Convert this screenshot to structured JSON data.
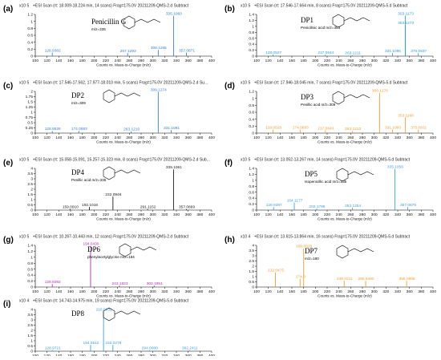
{
  "chart_data": [
    {
      "type": "bar",
      "panel": "(a)",
      "color": "#3a7fd5",
      "header": "+ESI Scan (rt: 18.009-18.224 min, 14 scans) Frag=175.0V 20211209-QMS-2.d  Subtract",
      "scale": "x10 5",
      "yticks": [
        "1.2",
        "1",
        "0.8",
        "0.6",
        "0.4",
        "0.2",
        "0"
      ],
      "ylim": [
        0,
        1.2
      ],
      "xticks": [
        "100",
        "120",
        "140",
        "160",
        "180",
        "200",
        "220",
        "240",
        "260",
        "280",
        "300",
        "320",
        "340",
        "360",
        "380",
        "400"
      ],
      "xlim": [
        100,
        400
      ],
      "xlabel": "Counts vs. Mass-to-Charge (m/z)",
      "compound": "Penicillin G",
      "compound_note": "m/z=335",
      "peaks": [
        {
          "mz": 128.9382,
          "i": 0.1,
          "label": "128.9382"
        },
        {
          "mz": 257.1293,
          "i": 0.09,
          "label": "257.1293"
        },
        {
          "mz": 309.1265,
          "i": 0.18,
          "label": "309.1265"
        },
        {
          "mz": 335.106,
          "i": 1.16,
          "label": "335.1060"
        },
        {
          "mz": 357.0871,
          "i": 0.1,
          "label": "357.0871"
        }
      ]
    },
    {
      "type": "bar",
      "panel": "(b)",
      "color": "#2a9fe0",
      "header": "+ESI Scan (rt: 17.546-17.664 min, 8 scans) Frag=175.0V 20211209-QMS-5.d  Subtract",
      "scale": "x10 5",
      "yticks": [
        "1.4",
        "1.2",
        "1",
        "0.8",
        "0.6",
        "0.4",
        "0.2",
        "0"
      ],
      "ylim": [
        0,
        1.4
      ],
      "xticks": [
        "100",
        "120",
        "140",
        "160",
        "180",
        "200",
        "220",
        "240",
        "260",
        "280",
        "300",
        "320",
        "340",
        "360",
        "380",
        "400"
      ],
      "xlim": [
        100,
        400
      ],
      "xlabel": "Counts vs. Mass-to-Charge (m/z)",
      "compound": "DP1",
      "compound_note": "Penicilloic acid m/z=353",
      "peaks": [
        {
          "mz": 128.0527,
          "i": 0.05,
          "label": "128.0527"
        },
        {
          "mz": 217.0644,
          "i": 0.05,
          "label": "217.0644"
        },
        {
          "mz": 263.1211,
          "i": 0.03,
          "label": "263.1211"
        },
        {
          "mz": 331.1096,
          "i": 0.1,
          "label": "331.1096"
        },
        {
          "mz": 353.1273,
          "i": 1.05,
          "label": "353.1273"
        },
        {
          "mz": 353.1173,
          "i": 1.36,
          "label": "353.1173"
        },
        {
          "mz": 375.0937,
          "i": 0.1,
          "label": "375.0937"
        }
      ]
    },
    {
      "type": "bar",
      "panel": "(c)",
      "color": "#3a7fd5",
      "header": "+ESI Scan (rt: 17.546-17.562, 17.977-18.010 min, 5 scans) Frag=175.0V 20211209-QMS-2.d  Su...",
      "scale": "x10 5",
      "yticks": [
        "2",
        "1.75",
        "1.5",
        "1.25",
        "1",
        "0.75",
        "0.5",
        "0.25",
        "0"
      ],
      "ylim": [
        0,
        2
      ],
      "xticks": [
        "100",
        "120",
        "140",
        "160",
        "180",
        "200",
        "220",
        "240",
        "260",
        "280",
        "300",
        "320",
        "340",
        "360",
        "380",
        "400"
      ],
      "xlim": [
        100,
        400
      ],
      "xlabel": "Counts vs. Mass-to-Charge (m/z)",
      "compound": "DP2",
      "compound_note": "m/z=309",
      "peaks": [
        {
          "mz": 128.9526,
          "i": 0.1,
          "label": "128.9526"
        },
        {
          "mz": 174.0683,
          "i": 0.1,
          "label": "174.0683"
        },
        {
          "mz": 263.121,
          "i": 0.08,
          "label": "263.1210"
        },
        {
          "mz": 309.1274,
          "i": 1.98,
          "label": "309.1274"
        },
        {
          "mz": 331.1091,
          "i": 0.14,
          "label": "331.1091"
        }
      ]
    },
    {
      "type": "bar",
      "panel": "(d)",
      "color": "#f0a030",
      "header": "+ESI Scan (rt: 17.946-18.045 min, 7 scans) Frag=175.0V 20211209-QMS-5.d  Subtract",
      "scale": "x10 5",
      "yticks": [
        "1.2",
        "1",
        "0.8",
        "0.6",
        "0.4",
        "0.2",
        "0"
      ],
      "ylim": [
        0,
        1.2
      ],
      "xticks": [
        "100",
        "120",
        "140",
        "160",
        "180",
        "200",
        "220",
        "240",
        "260",
        "280",
        "300",
        "320",
        "340",
        "360",
        "380",
        "400"
      ],
      "xlim": [
        100,
        400
      ],
      "xlabel": "Counts vs. Mass-to-Charge (m/z)",
      "compound": "DP3",
      "compound_note": "Penillic acid m/z=309",
      "peaks": [
        {
          "mz": 128.0528,
          "i": 0.1,
          "label": "128.0528"
        },
        {
          "mz": 174.0683,
          "i": 0.1,
          "label": "174.0683"
        },
        {
          "mz": 217.0643,
          "i": 0.08,
          "label": "217.0643"
        },
        {
          "mz": 263.1213,
          "i": 0.06,
          "label": "263.1213"
        },
        {
          "mz": 309.1278,
          "i": 1.16,
          "label": "309.1278"
        },
        {
          "mz": 331.1093,
          "i": 0.1,
          "label": "331.1093"
        },
        {
          "mz": 353.1168,
          "i": 0.45,
          "label": "353.1168"
        },
        {
          "mz": 375.0931,
          "i": 0.1,
          "label": "375.0931"
        }
      ]
    },
    {
      "type": "bar",
      "panel": "(e)",
      "color": "#1a1a1a",
      "header": "+ESI Scan (rt: 15.058-15.091, 15.257-15.323 min, 8 scans) Frag=175.0V 20211209-QMS-2.d  Sub...",
      "scale": "x10 5",
      "yticks": [
        "4",
        "3.5",
        "3",
        "2.5",
        "2",
        "1.5",
        "1",
        "0.5",
        "0"
      ],
      "ylim": [
        0,
        4
      ],
      "xticks": [
        "100",
        "120",
        "140",
        "160",
        "180",
        "200",
        "220",
        "240",
        "260",
        "280",
        "300",
        "320",
        "340",
        "360",
        "380",
        "400"
      ],
      "xlim": [
        100,
        400
      ],
      "xlabel": "Counts vs. Mass-to-Charge (m/z)",
      "compound": "DP4",
      "compound_note": "Penillic acid m/z=335",
      "peaks": [
        {
          "mz": 159.091,
          "i": 0.1,
          "label": "159.0910"
        },
        {
          "mz": 192.1016,
          "i": 0.3,
          "label": "192.1016"
        },
        {
          "mz": 232.0946,
          "i": 1.3,
          "label": "232.0946"
        },
        {
          "mz": 291.1152,
          "i": 0.1,
          "label": "291.1152"
        },
        {
          "mz": 335.1061,
          "i": 3.9,
          "label": "335.1061"
        },
        {
          "mz": 357.0869,
          "i": 0.1,
          "label": "357.0869"
        }
      ]
    },
    {
      "type": "bar",
      "panel": "(f)",
      "color": "#3ea0e0",
      "header": "+ESI Scan (rt: 13.052-13.267 min, 14 scans) Frag=175.0V 20211209-QMS-5.d  Subtract",
      "scale": "x10 5",
      "yticks": [
        "1.4",
        "1.2",
        "1",
        "0.8",
        "0.6",
        "0.4",
        "0.2",
        "0"
      ],
      "ylim": [
        0,
        1.4
      ],
      "xticks": [
        "100",
        "120",
        "140",
        "160",
        "180",
        "200",
        "220",
        "240",
        "260",
        "280",
        "300",
        "320",
        "340",
        "360",
        "380",
        "400"
      ],
      "xlim": [
        100,
        400
      ],
      "xlabel": "Counts vs. Mass-to-Charge (m/z)",
      "compound": "DP5",
      "compound_note": "Isopenicillic acid m/z=335",
      "peaks": [
        {
          "mz": 128.9387,
          "i": 0.1,
          "label": "128.9387"
        },
        {
          "mz": 164.1177,
          "i": 0.25,
          "label": "164.1177"
        },
        {
          "mz": 202.1796,
          "i": 0.05,
          "label": "202.1796"
        },
        {
          "mz": 263.1254,
          "i": 0.08,
          "label": "263.1254"
        },
        {
          "mz": 335.1056,
          "i": 1.38,
          "label": "335.1056"
        },
        {
          "mz": 357.0875,
          "i": 0.1,
          "label": "357.0875"
        }
      ]
    },
    {
      "type": "bar",
      "panel": "(g)",
      "color": "#b030b0",
      "header": "+ESI Scan (rt: 10.267-10.443 min, 12 scans) Frag=175.0V 20211209-QMS-2.d  Subtract",
      "scale": "x10 5",
      "yticks": [
        "1.4",
        "1.2",
        "1",
        "0.8",
        "0.6",
        "0.4",
        "0.2",
        "0"
      ],
      "ylim": [
        0,
        1.4
      ],
      "xticks": [
        "100",
        "120",
        "140",
        "160",
        "180",
        "200",
        "220",
        "240",
        "260",
        "280",
        "300",
        "320",
        "340",
        "360",
        "380",
        "400"
      ],
      "xlim": [
        100,
        400
      ],
      "xlabel": "Counts vs. Mass-to-Charge (m/z)",
      "compound": "DP6",
      "compound_note": "phenylacetylglycine m/z=194",
      "peaks": [
        {
          "mz": 128.9392,
          "i": 0.1,
          "label": "128.9392"
        },
        {
          "mz": 194.043,
          "i": 1.38,
          "label": "194.0430"
        },
        {
          "mz": 243.1823,
          "i": 0.05,
          "label": "243.1823"
        },
        {
          "mz": 302.1951,
          "i": 0.05,
          "label": "302.1951"
        }
      ]
    },
    {
      "type": "bar",
      "panel": "(h)",
      "color": "#f0a030",
      "header": "+ESI Scan (rt: 13.615-13.864 min, 16 scans) Frag=175.0V 20211209-QMS-5.d  Subtract",
      "scale": "x10 4",
      "yticks": [
        "4",
        "3.5",
        "3",
        "2.5",
        "2",
        "1.5",
        "1",
        "0.5",
        "0"
      ],
      "ylim": [
        0,
        4
      ],
      "xticks": [
        "100",
        "120",
        "140",
        "160",
        "180",
        "200",
        "220",
        "240",
        "260",
        "280",
        "300",
        "320",
        "340",
        "360",
        "380",
        "400"
      ],
      "xlim": [
        100,
        400
      ],
      "xlabel": "Counts vs. Mass-to-Charge (m/z)",
      "compound": "DP7",
      "compound_note": "m/z=180",
      "peaks": [
        {
          "mz": 132.0475,
          "i": 1.4,
          "label": "132.0475"
        },
        {
          "mz": 174.0,
          "i": 0.8,
          "label": "174.0"
        },
        {
          "mz": 180.0628,
          "i": 3.7,
          "label": "180.0628"
        },
        {
          "mz": 249.0211,
          "i": 0.6,
          "label": "249.0211"
        },
        {
          "mz": 285.549,
          "i": 0.6,
          "label": "285.5490"
        },
        {
          "mz": 355.0985,
          "i": 0.6,
          "label": "355.0985"
        }
      ]
    },
    {
      "type": "bar",
      "panel": "(i)",
      "color": "#3ea0e0",
      "header": "+ESI Scan (rt: 14.743-14.975 min, 19 scans) Frag=175.0V 20211209-QMS-5.d  Subtract",
      "scale": "x10 4",
      "yticks": [
        "4",
        "3.5",
        "3",
        "2.5",
        "2",
        "1.5",
        "1",
        "0.5",
        "0"
      ],
      "ylim": [
        0,
        4
      ],
      "xticks": [
        "100",
        "120",
        "140",
        "160",
        "180",
        "200",
        "220",
        "240",
        "260",
        "280",
        "300",
        "320",
        "340",
        "360",
        "380",
        "400"
      ],
      "xlim": [
        100,
        400
      ],
      "xlabel": "Counts vs. Mass-to-Charge (m/z)",
      "compound": "DP8",
      "compound_note": "",
      "peaks": [
        {
          "mz": 128.9721,
          "i": 0.1,
          "label": "128.9721"
        },
        {
          "mz": 194.0612,
          "i": 0.6,
          "label": "194.0612"
        },
        {
          "mz": 216.0632,
          "i": 3.8,
          "label": "216.0632"
        },
        {
          "mz": 232.0278,
          "i": 0.6,
          "label": "232.0278"
        },
        {
          "mz": 294.008,
          "i": 0.1,
          "label": "294.0080"
        },
        {
          "mz": 362.2411,
          "i": 0.1,
          "label": "362.2411"
        }
      ]
    }
  ]
}
